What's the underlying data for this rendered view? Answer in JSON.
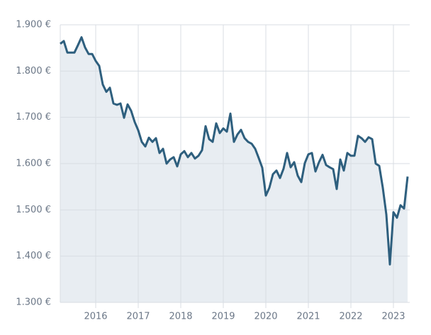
{
  "chart_data": {
    "type": "area",
    "categories": [
      null,
      null,
      null,
      null,
      null,
      null,
      null,
      null,
      null,
      null,
      "2016",
      null,
      null,
      null,
      null,
      null,
      null,
      null,
      null,
      null,
      null,
      null,
      "2017",
      null,
      null,
      null,
      null,
      null,
      null,
      null,
      null,
      null,
      null,
      null,
      "2018",
      null,
      null,
      null,
      null,
      null,
      null,
      null,
      null,
      null,
      null,
      null,
      "2019",
      null,
      null,
      null,
      null,
      null,
      null,
      null,
      null,
      null,
      null,
      null,
      "2020",
      null,
      null,
      null,
      null,
      null,
      null,
      null,
      null,
      null,
      null,
      null,
      "2021",
      null,
      null,
      null,
      null,
      null,
      null,
      null,
      null,
      null,
      null,
      null,
      "2022",
      null,
      null,
      null,
      null,
      null,
      null,
      null,
      null,
      null,
      null,
      null,
      "2023",
      null,
      null,
      null,
      null
    ],
    "values": [
      1859,
      1865,
      1840,
      1840,
      1840,
      1856,
      1873,
      1851,
      1837,
      1837,
      1822,
      1811,
      1771,
      1755,
      1764,
      1730,
      1727,
      1730,
      1699,
      1728,
      1714,
      1690,
      1672,
      1647,
      1637,
      1656,
      1647,
      1655,
      1623,
      1632,
      1600,
      1609,
      1614,
      1594,
      1620,
      1627,
      1614,
      1623,
      1611,
      1617,
      1629,
      1681,
      1653,
      1647,
      1687,
      1666,
      1676,
      1669,
      1708,
      1647,
      1663,
      1673,
      1655,
      1647,
      1643,
      1632,
      1612,
      1591,
      1531,
      1548,
      1577,
      1585,
      1569,
      1589,
      1623,
      1592,
      1603,
      1574,
      1560,
      1601,
      1620,
      1623,
      1583,
      1603,
      1619,
      1597,
      1592,
      1588,
      1545,
      1609,
      1585,
      1623,
      1617,
      1617,
      1660,
      1655,
      1647,
      1657,
      1653,
      1600,
      1595,
      1548,
      1490,
      1382,
      1495,
      1483,
      1510,
      1503,
      1572
    ],
    "color": "#2e5f7e",
    "fill": "#e8edf2",
    "ylim": [
      1300,
      1900
    ],
    "yticks": [
      {
        "value": 1300,
        "label": "1.300 €"
      },
      {
        "value": 1400,
        "label": "1.400 €"
      },
      {
        "value": 1500,
        "label": "1.500 €"
      },
      {
        "value": 1600,
        "label": "1.600 €"
      },
      {
        "value": 1700,
        "label": "1.700 €"
      },
      {
        "value": 1800,
        "label": "1.800 €"
      },
      {
        "value": 1900,
        "label": "1.900 €"
      }
    ],
    "grid": true
  }
}
